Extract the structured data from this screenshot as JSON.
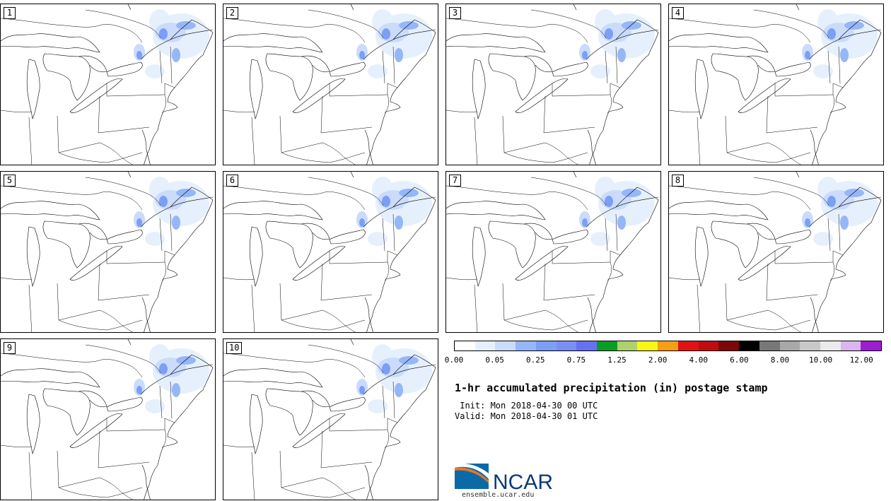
{
  "panels": [
    {
      "label": "1"
    },
    {
      "label": "2"
    },
    {
      "label": "3"
    },
    {
      "label": "4"
    },
    {
      "label": "5"
    },
    {
      "label": "6"
    },
    {
      "label": "7"
    },
    {
      "label": "8"
    },
    {
      "label": "9"
    },
    {
      "label": "10"
    }
  ],
  "colorbar": {
    "colors": [
      "#ffffff",
      "#e6f0fd",
      "#cbdbfb",
      "#95b7f8",
      "#7c9ff6",
      "#7a8ff5",
      "#6672f3",
      "#089e25",
      "#b0d06e",
      "#fbf515",
      "#f89e15",
      "#e21116",
      "#c00c10",
      "#7e0709",
      "#000000",
      "#787878",
      "#a8a8a8",
      "#c8c8c8",
      "#ebebeb",
      "#dcb4f0",
      "#9b1ed2"
    ],
    "tick_labels": [
      "0.00",
      "0.05",
      "0.25",
      "0.75",
      "1.25",
      "2.00",
      "4.00",
      "6.00",
      "8.00",
      "10.00",
      "12.00"
    ]
  },
  "title": "1-hr accumulated precipitation (in) postage stamp",
  "init": " Init: Mon 2018-04-30 00 UTC",
  "valid": "Valid: Mon 2018-04-30 01 UTC",
  "logo": {
    "text": "NCAR",
    "icon": "ncar-logo-icon",
    "brand_color": "#0a6aa8"
  },
  "url": "ensemble.ucar.edu"
}
